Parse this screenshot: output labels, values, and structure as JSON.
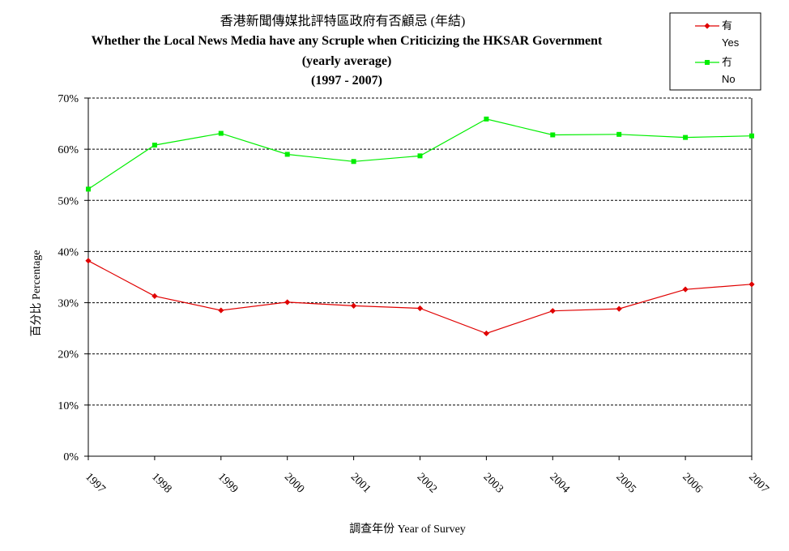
{
  "chart_data": {
    "type": "line",
    "title_zh": "香港新聞傳媒批評特區政府有否顧忌 (年結)",
    "title_en": "Whether the Local News Media have any Scruple when Criticizing the HKSAR Government",
    "subtitle": "(yearly average)",
    "period": "(1997 - 2007)",
    "xlabel": "調查年份 Year of Survey",
    "ylabel": "百分比 Percentage",
    "categories": [
      "1997",
      "1998",
      "1999",
      "2000",
      "2001",
      "2002",
      "2003",
      "2004",
      "2005",
      "2006",
      "2007"
    ],
    "y_ticks": [
      "0%",
      "10%",
      "20%",
      "30%",
      "40%",
      "50%",
      "60%",
      "70%"
    ],
    "ylim": [
      0,
      70
    ],
    "grid": true,
    "legend_position": "top-right",
    "series": [
      {
        "name": "有",
        "name_en": "Yes",
        "color": "#e00000",
        "marker": "diamond",
        "values": [
          38.2,
          31.3,
          28.5,
          30.1,
          29.4,
          28.9,
          24.0,
          28.4,
          28.8,
          32.6,
          33.6
        ]
      },
      {
        "name": "冇",
        "name_en": "No",
        "color": "#00ee00",
        "marker": "square",
        "values": [
          52.2,
          60.8,
          63.1,
          59.0,
          57.6,
          58.7,
          65.9,
          62.8,
          62.9,
          62.3,
          62.6
        ]
      }
    ]
  }
}
